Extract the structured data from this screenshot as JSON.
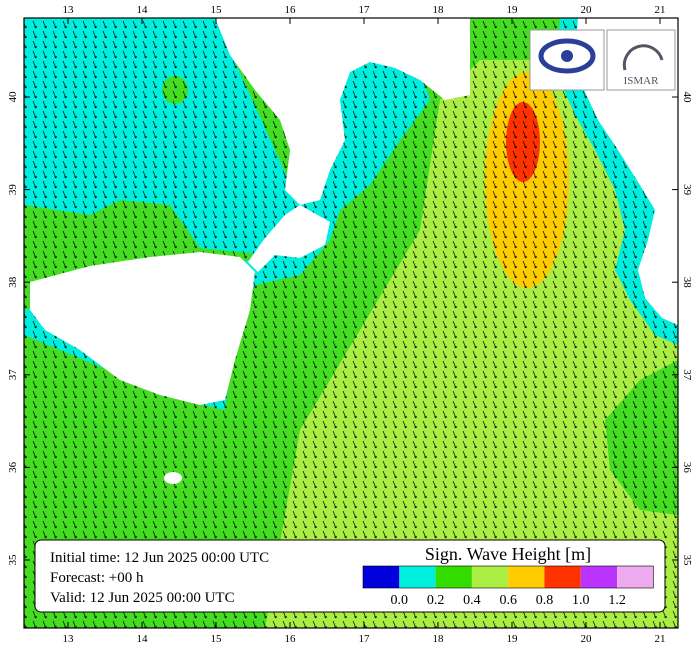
{
  "map": {
    "lon_ticks": [
      13,
      14,
      15,
      16,
      17,
      18,
      19,
      20,
      21
    ],
    "lat_ticks": [
      35,
      36,
      37,
      38,
      39,
      40
    ],
    "logo_text": "ISMAR",
    "info": {
      "initial_time": "Initial time: 12 Jun 2025 00:00 UTC",
      "forecast": "Forecast: +00 h",
      "valid": "Valid: 12 Jun 2025 00:00 UTC"
    },
    "legend": {
      "title": "Sign. Wave Height [m]",
      "colors": [
        "#0000dd",
        "#00eedd",
        "#33dd00",
        "#aaee44",
        "#ffcc00",
        "#ff3300",
        "#bb33ff",
        "#eeaaee"
      ],
      "ticks": [
        {
          "value": 0,
          "label": "0.0"
        },
        {
          "value": 0.2,
          "label": "0.2"
        },
        {
          "value": 0.4,
          "label": "0.4"
        },
        {
          "value": 0.6,
          "label": "0.6"
        },
        {
          "value": 0.8,
          "label": "0.8"
        },
        {
          "value": 1.0,
          "label": "1.0"
        },
        {
          "value": 1.2,
          "label": "1.2"
        }
      ]
    }
  }
}
